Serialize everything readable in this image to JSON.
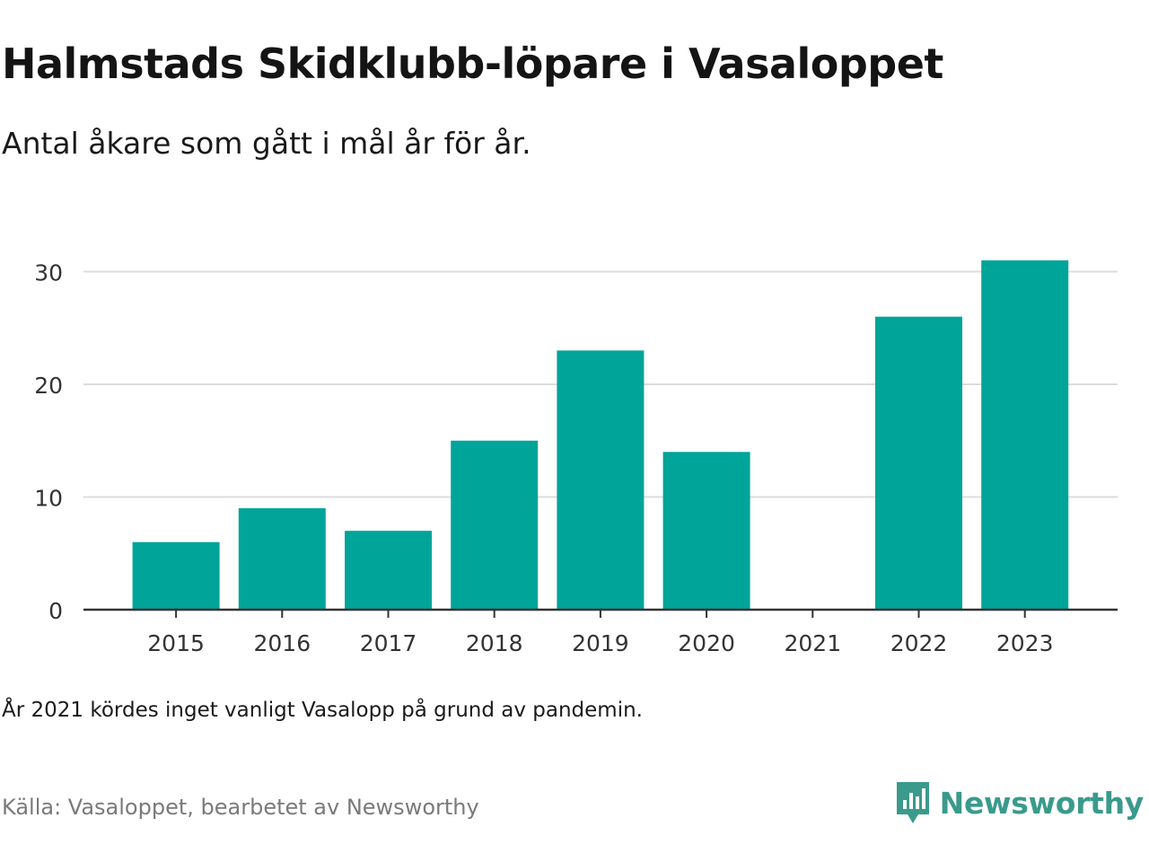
{
  "title": "Halmstads Skidklubb-löpare i Vasaloppet",
  "subtitle": "Antal åkare som gått i mål år för år.",
  "note": "År 2021 kördes inget vanligt Vasalopp på grund av pandemin.",
  "source": "Källa: Vasaloppet, bearbetet av Newsworthy",
  "brand": {
    "name": "Newsworthy",
    "icon": "newsworthy-logo-icon",
    "color": "#3a9a8c"
  },
  "colors": {
    "bar": "#00a499",
    "grid": "#dcdcdc",
    "axis": "#333333",
    "tick_text": "#333333"
  },
  "chart_data": {
    "type": "bar",
    "categories": [
      "2015",
      "2016",
      "2017",
      "2018",
      "2019",
      "2020",
      "2021",
      "2022",
      "2023"
    ],
    "values": [
      6,
      9,
      7,
      15,
      23,
      14,
      0,
      26,
      31
    ],
    "ylim": [
      0,
      30
    ],
    "yticks": [
      0,
      10,
      20,
      30
    ],
    "ytick_labels": [
      "0",
      "10",
      "20",
      "30"
    ],
    "grid": true,
    "xlabel": "",
    "ylabel": ""
  }
}
